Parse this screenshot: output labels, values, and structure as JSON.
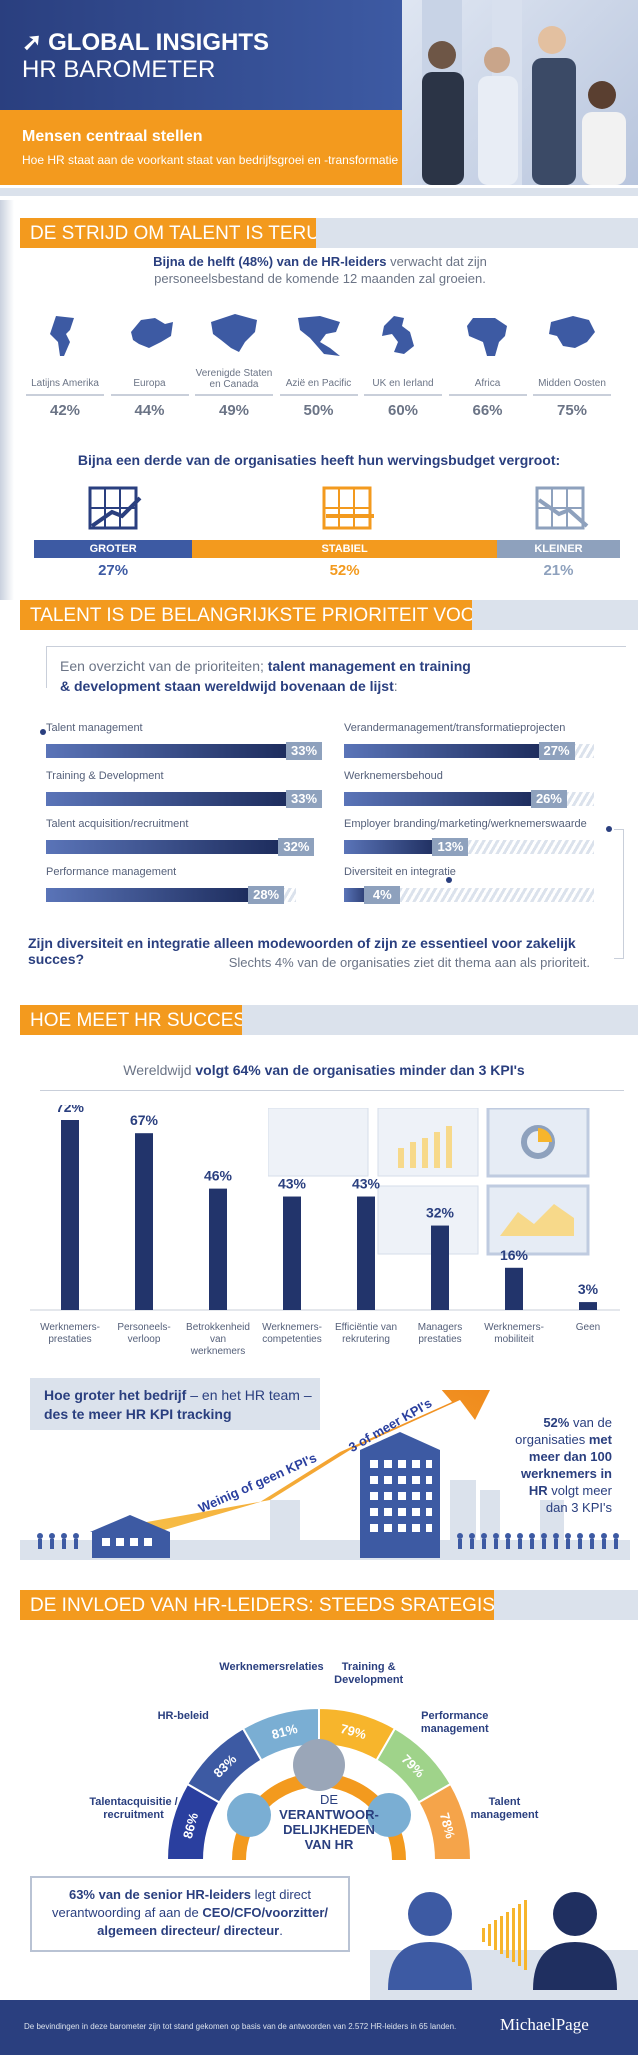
{
  "header": {
    "title_line1": "GLOBAL INSIGHTS",
    "title_line2": "HR BAROMETER",
    "subtitle": "Mensen centraal stellen",
    "tagline": "Hoe HR staat aan de voorkant staat van bedrijfsgroei en -transformatie"
  },
  "section1": {
    "heading": "DE STRIJD OM TALENT IS TERUG!",
    "intro_bold": "Bijna de helft (48%) van de HR-leiders",
    "intro_rest": " verwacht dat zijn",
    "intro_line2": "personeelsbestand de komende 12 maanden zal groeien.",
    "regions": [
      {
        "label": "Latijns Amerika",
        "pct": "42%"
      },
      {
        "label": "Europa",
        "pct": "44%"
      },
      {
        "label": "Verenigde Staten en Canada",
        "pct": "49%"
      },
      {
        "label": "Azië en Pacific",
        "pct": "50%"
      },
      {
        "label": "UK en Ierland",
        "pct": "60%"
      },
      {
        "label": "Africa",
        "pct": "66%"
      },
      {
        "label": "Midden Oosten",
        "pct": "75%"
      }
    ],
    "budget_heading": "Bijna een derde van de organisaties heeft hun wervingsbudget vergroot:",
    "budget": [
      {
        "label": "GROTER",
        "pct": "27%",
        "value": 27,
        "color": "#3d5aa3"
      },
      {
        "label": "STABIEL",
        "pct": "52%",
        "value": 52,
        "color": "#f39a1e"
      },
      {
        "label": "KLEINER",
        "pct": "21%",
        "value": 21,
        "color": "#8ea1bd"
      }
    ]
  },
  "section2": {
    "heading": "TALENT IS DE BELANGRIJKSTE PRIORITEIT VOOR HR",
    "intro_plain": "Een overzicht van de prioriteiten; ",
    "intro_bold1": "talent management en training",
    "intro_bold2": "& development staan wereldwijd bovenaan de lijst",
    "intro_end": ":",
    "left": [
      {
        "label": "Talent management",
        "pct": "33%",
        "value": 33
      },
      {
        "label": "Training & Development",
        "pct": "33%",
        "value": 33
      },
      {
        "label": "Talent acquisition/recruitment",
        "pct": "32%",
        "value": 32
      },
      {
        "label": "Performance management",
        "pct": "28%",
        "value": 28
      }
    ],
    "right": [
      {
        "label": "Verandermanagement/transformatieprojecten",
        "pct": "27%",
        "value": 27
      },
      {
        "label": "Werknemersbehoud",
        "pct": "26%",
        "value": 26
      },
      {
        "label": "Employer branding/marketing/werknemerswaarde",
        "pct": "13%",
        "value": 13
      },
      {
        "label": "Diversiteit en integratie",
        "pct": "4%",
        "value": 4
      }
    ],
    "question": "Zijn diversiteit en integratie alleen modewoorden of zijn ze essentieel voor zakelijk succes?",
    "answer": "Slechts 4% van de organisaties ziet dit thema aan als prioriteit."
  },
  "section3": {
    "heading": "HOE MEET HR SUCCES?",
    "intro_plain": "Wereldwijd ",
    "intro_bold": "volgt 64% van de organisaties minder dan 3 KPI's",
    "kpis": [
      {
        "label": "Werknemers-prestaties",
        "pct": "72%",
        "value": 72
      },
      {
        "label": "Personeels-verloop",
        "pct": "67%",
        "value": 67
      },
      {
        "label": "Betrokkenheid van werknemers",
        "pct": "46%",
        "value": 46
      },
      {
        "label": "Werknemers-competenties",
        "pct": "43%",
        "value": 43
      },
      {
        "label": "Efficiëntie van rekrutering",
        "pct": "43%",
        "value": 43
      },
      {
        "label": "Managers prestaties",
        "pct": "32%",
        "value": 32
      },
      {
        "label": "Werknemers-mobiliteit",
        "pct": "16%",
        "value": 16
      },
      {
        "label": "Geen",
        "pct": "3%",
        "value": 3
      }
    ],
    "growth_bold1": "Hoe groter het bedrijf",
    "growth_rest": " – en het HR team –",
    "growth_bold2": "des te meer HR KPI tracking",
    "arrow_low": "Weinig of geen KPI's",
    "arrow_high": "3 of meer KPI's",
    "stat_pct": "52%",
    "stat_line1": " van de",
    "stat_line2": "organisaties ",
    "stat_bold_met": "met",
    "stat_bold_line3": "meer dan 100",
    "stat_bold_line4": "werknemers in",
    "stat_bold_hr": "HR",
    "stat_line5": " volgt meer",
    "stat_line6": "dan 3 KPI's"
  },
  "section4": {
    "heading": "DE INVLOED VAN HR-LEIDERS: STEEDS SRATEGISCHER",
    "arc": [
      {
        "label": "Talentacquisitie / recruitment",
        "pct": "86%",
        "color": "#2a3f9f"
      },
      {
        "label": "HR-beleid",
        "pct": "83%",
        "color": "#3d5aa3"
      },
      {
        "label": "Werknemersrelaties",
        "pct": "81%",
        "color": "#7aaed3"
      },
      {
        "label": "Training & Development",
        "pct": "79%",
        "color": "#f7b52c"
      },
      {
        "label": "Performance management",
        "pct": "79%",
        "color": "#9fd38a"
      },
      {
        "label": "Talent management",
        "pct": "78%",
        "color": "#f5a44a"
      }
    ],
    "center_line1": "DE",
    "center_line2": "VERANTWOOR-",
    "center_line3": "DELIJKHEDEN VAN HR",
    "report_bold1": "63% van de senior HR-leiders",
    "report_rest": " legt direct",
    "report_line2": "verantwoording af aan de ",
    "report_bold2": "CEO/CFO/voorzitter/",
    "report_bold3": "algemeen directeur/ directeur",
    "report_end": "."
  },
  "footer": {
    "note": "De bevindingen in deze barometer zijn tot stand gekomen op basis van de antwoorden van 2.572 HR-leiders in 65 landen.",
    "brand": "MichaelPage"
  },
  "colors": {
    "navy": "#2a3f7f",
    "orange": "#f39a1e",
    "gray": "#8ea1bd",
    "light": "#dbe2ec"
  }
}
